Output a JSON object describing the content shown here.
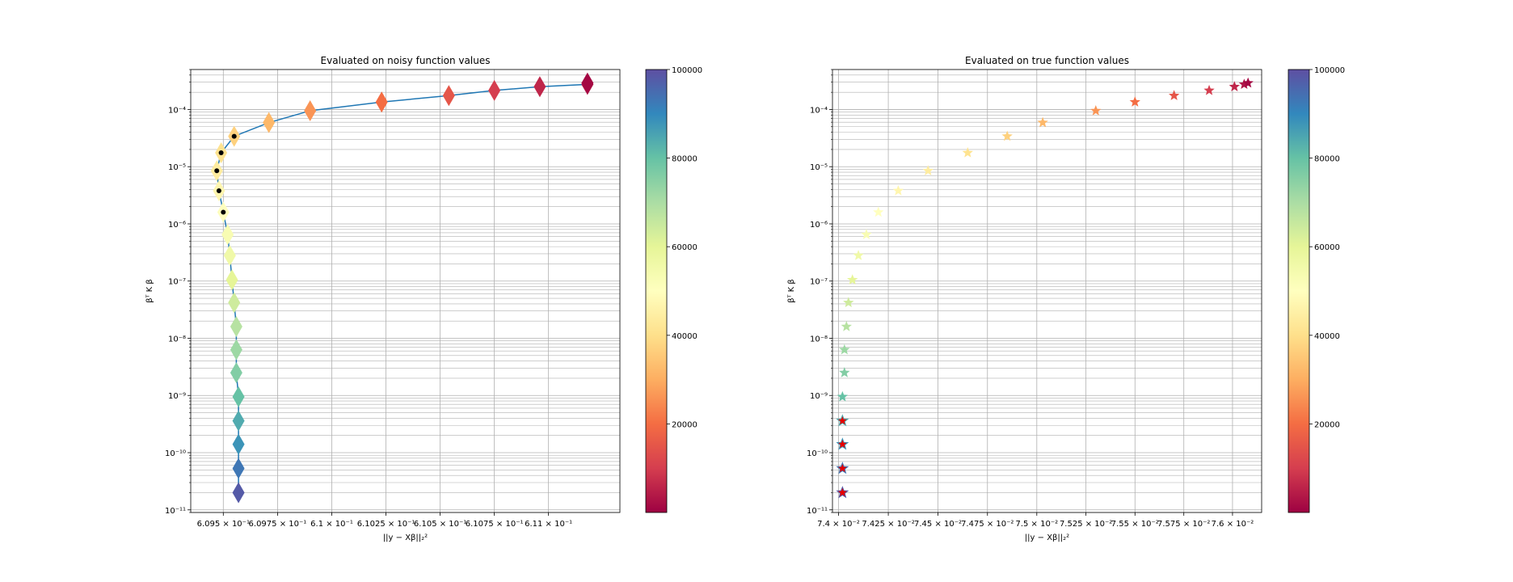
{
  "chart_data": [
    {
      "type": "scatter",
      "title": "Evaluated on noisy function values",
      "xlabel": "||y − Xβ||₂²",
      "ylabel": "βᵀ K β",
      "xscale": "log",
      "yscale": "log",
      "xlim": [
        0.60935,
        0.61133
      ],
      "ylim": [
        9e-12,
        0.0005
      ],
      "xticks": [
        0.6095,
        0.60975,
        0.61,
        0.61025,
        0.6105,
        0.61075,
        0.611
      ],
      "xtick_labels": [
        "6.095 × 10⁻¹",
        "6.0975 × 10⁻¹",
        "6.1 × 10⁻¹",
        "6.1025 × 10⁻¹",
        "6.105 × 10⁻¹",
        "6.1075 × 10⁻¹",
        "6.11 × 10⁻¹"
      ],
      "ytick_labels": [
        "10⁻¹¹",
        "10⁻¹⁰",
        "10⁻⁹",
        "10⁻⁸",
        "10⁻⁷",
        "10⁻⁶",
        "10⁻⁵",
        "10⁻⁴"
      ],
      "grid": true,
      "marker": "diamond",
      "line": true,
      "highlight_markers": "black dots at points with index 10–15",
      "colormap": "Spectral",
      "colorbar": {
        "min": 0,
        "max": 100000,
        "ticks": [
          20000,
          40000,
          60000,
          80000,
          100000
        ],
        "tick_labels": [
          "20000",
          "40000",
          "60000",
          "80000",
          "100000"
        ]
      },
      "points": [
        {
          "x": 0.61118,
          "y": 0.00029,
          "c": 1000
        },
        {
          "x": 0.61118,
          "y": 0.000275,
          "c": 3000
        },
        {
          "x": 0.61096,
          "y": 0.00025,
          "c": 6000
        },
        {
          "x": 0.61075,
          "y": 0.000215,
          "c": 10000
        },
        {
          "x": 0.61054,
          "y": 0.000175,
          "c": 15000
        },
        {
          "x": 0.61023,
          "y": 0.000135,
          "c": 20000
        },
        {
          "x": 0.6099,
          "y": 9.5e-05,
          "c": 26000
        },
        {
          "x": 0.60971,
          "y": 5.9e-05,
          "c": 32000
        },
        {
          "x": 0.60955,
          "y": 3.4e-05,
          "c": 37000
        },
        {
          "x": 0.60949,
          "y": 1.75e-05,
          "c": 41000
        },
        {
          "x": 0.60947,
          "y": 8.5e-06,
          "c": 44000
        },
        {
          "x": 0.60948,
          "y": 3.8e-06,
          "c": 47000
        },
        {
          "x": 0.6095,
          "y": 1.6e-06,
          "c": 50000
        },
        {
          "x": 0.60952,
          "y": 6.5e-07,
          "c": 53000
        },
        {
          "x": 0.60953,
          "y": 2.8e-07,
          "c": 56000
        },
        {
          "x": 0.60954,
          "y": 1.05e-07,
          "c": 60000
        },
        {
          "x": 0.60955,
          "y": 4.2e-08,
          "c": 64000
        },
        {
          "x": 0.60956,
          "y": 1.6e-08,
          "c": 68000
        },
        {
          "x": 0.60956,
          "y": 6.3e-09,
          "c": 72000
        },
        {
          "x": 0.60956,
          "y": 2.5e-09,
          "c": 76000
        },
        {
          "x": 0.60957,
          "y": 9.5e-10,
          "c": 80000
        },
        {
          "x": 0.60957,
          "y": 3.6e-10,
          "c": 84000
        },
        {
          "x": 0.60957,
          "y": 1.4e-10,
          "c": 88000
        },
        {
          "x": 0.60957,
          "y": 5.3e-11,
          "c": 93000
        },
        {
          "x": 0.60957,
          "y": 2e-11,
          "c": 98000
        }
      ]
    },
    {
      "type": "scatter",
      "title": "Evaluated on true function values",
      "xlabel": "||y − Xβ||₂²",
      "ylabel": "βᵀ K β",
      "xscale": "log",
      "yscale": "log",
      "xlim": [
        0.07397,
        0.07615
      ],
      "ylim": [
        9e-12,
        0.0005
      ],
      "xticks": [
        0.074,
        0.07425,
        0.0745,
        0.07475,
        0.075,
        0.07525,
        0.0755,
        0.07575,
        0.076
      ],
      "xtick_labels": [
        "7.4 × 10⁻²",
        "7.425 × 10⁻²",
        "7.45 × 10⁻²",
        "7.475 × 10⁻²",
        "7.5 × 10⁻²",
        "7.525 × 10⁻²",
        "7.55 × 10⁻²",
        "7.575 × 10⁻²",
        "7.6 × 10⁻²"
      ],
      "ytick_labels": [
        "10⁻¹¹",
        "10⁻¹⁰",
        "10⁻⁹",
        "10⁻⁸",
        "10⁻⁷",
        "10⁻⁶",
        "10⁻⁵",
        "10⁻⁴"
      ],
      "grid": true,
      "marker": "star",
      "line": false,
      "highlight_markers": "red stars at the four lowest points",
      "colormap": "Spectral",
      "colorbar": {
        "min": 0,
        "max": 100000,
        "ticks": [
          20000,
          40000,
          60000,
          80000,
          100000
        ],
        "tick_labels": [
          "20000",
          "40000",
          "60000",
          "80000",
          "100000"
        ]
      },
      "points": [
        {
          "x": 0.07608,
          "y": 0.00029,
          "c": 1000
        },
        {
          "x": 0.07606,
          "y": 0.000275,
          "c": 3000
        },
        {
          "x": 0.07601,
          "y": 0.00025,
          "c": 6000
        },
        {
          "x": 0.07588,
          "y": 0.000215,
          "c": 10000
        },
        {
          "x": 0.0757,
          "y": 0.000175,
          "c": 15000
        },
        {
          "x": 0.0755,
          "y": 0.000135,
          "c": 20000
        },
        {
          "x": 0.0753,
          "y": 9.5e-05,
          "c": 26000
        },
        {
          "x": 0.07503,
          "y": 5.9e-05,
          "c": 32000
        },
        {
          "x": 0.07485,
          "y": 3.4e-05,
          "c": 37000
        },
        {
          "x": 0.07465,
          "y": 1.75e-05,
          "c": 41000
        },
        {
          "x": 0.07445,
          "y": 8.5e-06,
          "c": 44000
        },
        {
          "x": 0.0743,
          "y": 3.8e-06,
          "c": 47000
        },
        {
          "x": 0.0742,
          "y": 1.6e-06,
          "c": 50000
        },
        {
          "x": 0.07414,
          "y": 6.5e-07,
          "c": 53000
        },
        {
          "x": 0.0741,
          "y": 2.8e-07,
          "c": 56000
        },
        {
          "x": 0.07407,
          "y": 1.05e-07,
          "c": 60000
        },
        {
          "x": 0.07405,
          "y": 4.2e-08,
          "c": 64000
        },
        {
          "x": 0.07404,
          "y": 1.6e-08,
          "c": 68000
        },
        {
          "x": 0.07403,
          "y": 6.3e-09,
          "c": 72000
        },
        {
          "x": 0.07403,
          "y": 2.5e-09,
          "c": 76000
        },
        {
          "x": 0.07402,
          "y": 9.5e-10,
          "c": 80000
        },
        {
          "x": 0.07402,
          "y": 3.6e-10,
          "c": 84000
        },
        {
          "x": 0.07402,
          "y": 1.4e-10,
          "c": 88000
        },
        {
          "x": 0.07402,
          "y": 5.3e-11,
          "c": 93000
        },
        {
          "x": 0.07402,
          "y": 2e-11,
          "c": 98000
        }
      ]
    }
  ]
}
